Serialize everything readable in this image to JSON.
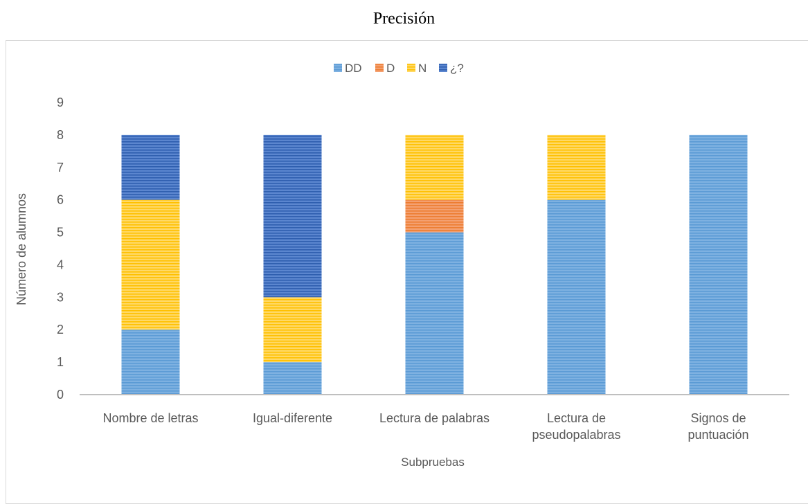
{
  "chart_data": {
    "type": "bar",
    "stacked": true,
    "title": "Precisión",
    "xlabel": "Subpruebas",
    "ylabel": "Número de alumnos",
    "ylim": [
      0,
      9
    ],
    "yticks": [
      "0",
      "1",
      "2",
      "3",
      "4",
      "5",
      "6",
      "7",
      "8",
      "9"
    ],
    "categories": [
      [
        "Nombre de letras"
      ],
      [
        "Igual-diferente"
      ],
      [
        "Lectura de palabras"
      ],
      [
        "Lectura de",
        "pseudopalabras"
      ],
      [
        "Signos de",
        "puntuación"
      ]
    ],
    "series": [
      {
        "name": "DD",
        "color": "#7eb1e1",
        "stripe": "#5b9bd5",
        "values": [
          2,
          1,
          5,
          6,
          8
        ]
      },
      {
        "name": "D",
        "color": "#f4a070",
        "stripe": "#ed7d31",
        "values": [
          0,
          0,
          1,
          0,
          0
        ]
      },
      {
        "name": "N",
        "color": "#ffd966",
        "stripe": "#ffc000",
        "values": [
          4,
          2,
          2,
          2,
          0
        ]
      },
      {
        "name": "¿?",
        "color": "#5b86cf",
        "stripe": "#2f5faf",
        "values": [
          2,
          5,
          0,
          0,
          0
        ]
      }
    ],
    "grid": false,
    "legend": "top-center"
  }
}
